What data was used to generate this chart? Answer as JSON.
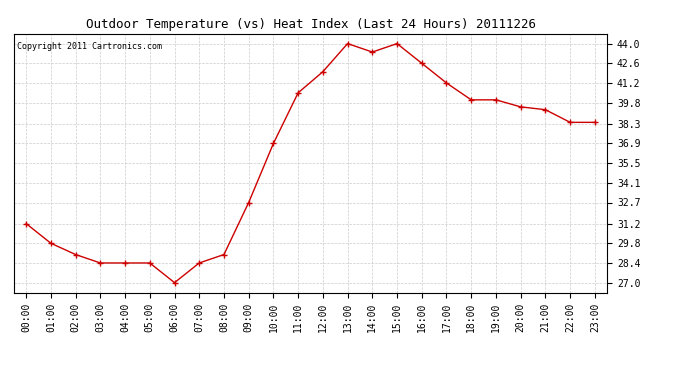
{
  "title": "Outdoor Temperature (vs) Heat Index (Last 24 Hours) 20111226",
  "copyright": "Copyright 2011 Cartronics.com",
  "x_labels": [
    "00:00",
    "01:00",
    "02:00",
    "03:00",
    "04:00",
    "05:00",
    "06:00",
    "07:00",
    "08:00",
    "09:00",
    "10:00",
    "11:00",
    "12:00",
    "13:00",
    "14:00",
    "15:00",
    "16:00",
    "17:00",
    "18:00",
    "19:00",
    "20:00",
    "21:00",
    "22:00",
    "23:00"
  ],
  "y_values": [
    31.2,
    29.8,
    29.0,
    28.4,
    28.4,
    28.4,
    27.0,
    28.4,
    29.0,
    32.7,
    36.9,
    40.5,
    42.0,
    44.0,
    43.4,
    44.0,
    42.6,
    41.2,
    40.0,
    40.0,
    39.5,
    39.3,
    38.4,
    38.4
  ],
  "line_color": "#cc0000",
  "marker": "+",
  "marker_size": 4,
  "marker_linewidth": 1.0,
  "line_width": 1.0,
  "background_color": "#ffffff",
  "plot_bg_color": "#ffffff",
  "grid_color": "#cccccc",
  "title_fontsize": 9,
  "copyright_fontsize": 6,
  "tick_fontsize": 7,
  "ytick_values": [
    27.0,
    28.4,
    29.8,
    31.2,
    32.7,
    34.1,
    35.5,
    36.9,
    38.3,
    39.8,
    41.2,
    42.6,
    44.0
  ],
  "ylim": [
    26.3,
    44.7
  ],
  "xlim": [
    -0.5,
    23.5
  ]
}
